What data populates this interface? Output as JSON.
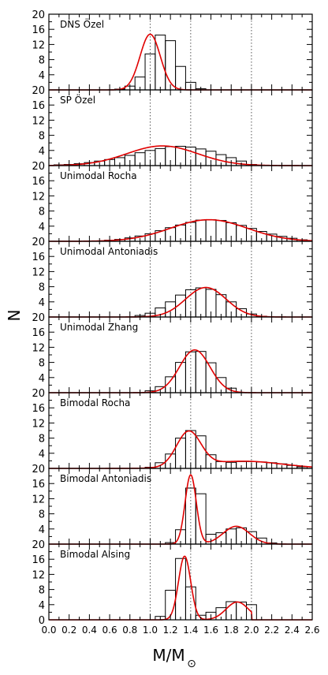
{
  "figure": {
    "ylabel": "N",
    "xlabel": "M/M",
    "xlabel_sub": "⊙"
  },
  "chart_data": [
    {
      "type": "bar",
      "title": "DNS Özel",
      "x_bin_centers": [
        0.7,
        0.8,
        0.9,
        1.0,
        1.1,
        1.2,
        1.3,
        1.4,
        1.5,
        1.6,
        1.7,
        1.8,
        1.9,
        2.0,
        2.1,
        2.2,
        2.3,
        2.4,
        2.5
      ],
      "values": [
        0.2,
        1.0,
        3.4,
        9.5,
        14.5,
        13.0,
        6.2,
        2.0,
        0.3,
        0,
        0,
        0,
        0,
        0,
        0,
        0,
        0,
        0,
        0
      ],
      "fit": {
        "shape": "gaussian",
        "peaks": [
          {
            "mu": 1.0,
            "sigma": 0.1,
            "amp": 14.7
          }
        ]
      },
      "xlim": [
        0,
        2.6
      ],
      "ylim": [
        0,
        20
      ],
      "yticks": [
        4,
        8,
        12,
        16,
        20
      ]
    },
    {
      "type": "bar",
      "title": "SP Özel",
      "x_bin_centers": [
        0.1,
        0.2,
        0.3,
        0.4,
        0.5,
        0.6,
        0.7,
        0.8,
        0.9,
        1.0,
        1.1,
        1.2,
        1.3,
        1.4,
        1.5,
        1.6,
        1.7,
        1.8,
        1.9,
        2.0
      ],
      "values": [
        0.2,
        0.3,
        0.5,
        0.8,
        1.2,
        1.6,
        2.1,
        2.7,
        3.4,
        4.0,
        4.5,
        5.0,
        5.1,
        4.9,
        4.4,
        3.8,
        2.9,
        2.1,
        1.2,
        0.3
      ],
      "fit": {
        "shape": "gaussian",
        "peaks": [
          {
            "mu": 1.12,
            "sigma": 0.35,
            "amp": 5.2
          }
        ]
      },
      "xlim": [
        0,
        2.6
      ],
      "ylim": [
        0,
        20
      ],
      "yticks": [
        4,
        8,
        12,
        16,
        20
      ]
    },
    {
      "type": "bar",
      "title": "Unimodal Rocha",
      "x_bin_centers": [
        0.6,
        0.7,
        0.8,
        0.9,
        1.0,
        1.1,
        1.2,
        1.3,
        1.4,
        1.5,
        1.6,
        1.7,
        1.8,
        1.9,
        2.0,
        2.1,
        2.2,
        2.3,
        2.4,
        2.5
      ],
      "values": [
        0.3,
        0.5,
        0.9,
        1.4,
        2.0,
        2.8,
        3.6,
        4.3,
        5.0,
        5.6,
        5.7,
        5.5,
        4.9,
        4.2,
        3.4,
        2.6,
        1.9,
        1.3,
        0.8,
        0.4
      ],
      "fit": {
        "shape": "gaussian",
        "peaks": [
          {
            "mu": 1.58,
            "sigma": 0.38,
            "amp": 5.7
          }
        ]
      },
      "xlim": [
        0,
        2.6
      ],
      "ylim": [
        0,
        20
      ],
      "yticks": [
        4,
        8,
        12,
        16,
        20
      ]
    },
    {
      "type": "bar",
      "title": "Unimodal Antoniadis",
      "x_bin_centers": [
        0.9,
        1.0,
        1.1,
        1.2,
        1.3,
        1.4,
        1.5,
        1.6,
        1.7,
        1.8,
        1.9,
        2.0,
        2.1
      ],
      "values": [
        0.4,
        1.0,
        2.4,
        4.0,
        5.8,
        7.2,
        7.7,
        7.3,
        5.9,
        4.0,
        2.2,
        0.8,
        0.2
      ],
      "fit": {
        "shape": "gaussian",
        "peaks": [
          {
            "mu": 1.55,
            "sigma": 0.2,
            "amp": 7.8
          }
        ]
      },
      "xlim": [
        0,
        2.6
      ],
      "ylim": [
        0,
        20
      ],
      "yticks": [
        4,
        8,
        12,
        16,
        20
      ]
    },
    {
      "type": "bar",
      "title": "Unimodal Zhang",
      "x_bin_centers": [
        1.0,
        1.1,
        1.2,
        1.3,
        1.4,
        1.5,
        1.6,
        1.7,
        1.8
      ],
      "values": [
        0.5,
        1.6,
        4.2,
        8.0,
        10.8,
        10.9,
        7.9,
        4.0,
        1.2
      ],
      "fit": {
        "shape": "gaussian",
        "peaks": [
          {
            "mu": 1.44,
            "sigma": 0.15,
            "amp": 11.3
          }
        ]
      },
      "xlim": [
        0,
        2.6
      ],
      "ylim": [
        0,
        20
      ],
      "yticks": [
        4,
        8,
        12,
        16,
        20
      ]
    },
    {
      "type": "bar",
      "title": "Bimodal Rocha",
      "x_bin_centers": [
        1.0,
        1.1,
        1.2,
        1.3,
        1.4,
        1.5,
        1.6,
        1.7,
        1.8,
        1.9,
        2.0,
        2.1,
        2.2,
        2.3,
        2.4,
        2.5
      ],
      "values": [
        0.3,
        1.5,
        3.8,
        8.0,
        10.0,
        8.6,
        3.6,
        1.8,
        1.6,
        1.8,
        1.8,
        1.7,
        1.5,
        1.2,
        0.8,
        0.4
      ],
      "fit": {
        "shape": "bimodal",
        "peaks": [
          {
            "mu": 1.38,
            "sigma": 0.12,
            "amp": 9.2
          },
          {
            "mu": 1.92,
            "sigma": 0.38,
            "amp": 1.9
          }
        ]
      },
      "xlim": [
        0,
        2.6
      ],
      "ylim": [
        0,
        20
      ],
      "yticks": [
        4,
        8,
        12,
        16,
        20
      ]
    },
    {
      "type": "bar",
      "title": "Bimodal Antoniadis",
      "x_bin_centers": [
        1.2,
        1.3,
        1.4,
        1.5,
        1.6,
        1.7,
        1.8,
        1.9,
        2.0,
        2.1,
        2.2
      ],
      "values": [
        0.4,
        3.8,
        14.8,
        13.3,
        2.6,
        3.0,
        4.0,
        4.3,
        3.3,
        1.6,
        0.3
      ],
      "fit": {
        "shape": "bimodal",
        "peaks": [
          {
            "mu": 1.4,
            "sigma": 0.055,
            "amp": 18.3
          },
          {
            "mu": 1.85,
            "sigma": 0.13,
            "amp": 4.7
          }
        ]
      },
      "xlim": [
        0,
        2.6
      ],
      "ylim": [
        0,
        20
      ],
      "yticks": [
        4,
        8,
        12,
        16,
        20
      ]
    },
    {
      "type": "bar",
      "title": "Bimodal Alsing",
      "x_bin_centers": [
        1.1,
        1.2,
        1.3,
        1.4,
        1.5,
        1.6,
        1.7,
        1.8,
        1.9,
        2.0
      ],
      "values": [
        0.9,
        7.8,
        16.2,
        8.7,
        1.2,
        2.0,
        3.2,
        4.8,
        4.7,
        4.0
      ],
      "fit": {
        "shape": "bimodal",
        "peaks": [
          {
            "mu": 1.34,
            "sigma": 0.06,
            "amp": 16.8
          },
          {
            "mu": 1.86,
            "sigma": 0.11,
            "amp": 4.7
          }
        ],
        "cutoff": 2.0
      },
      "xlim": [
        0,
        2.6
      ],
      "ylim": [
        0,
        20
      ],
      "yticks": [
        0,
        4,
        8,
        12,
        16,
        20
      ],
      "xticks": [
        "0.0",
        "0.2",
        "0.4",
        "0.6",
        "0.8",
        "1.0",
        "1.2",
        "1.4",
        "1.6",
        "1.8",
        "2.0",
        "2.2",
        "2.4",
        "2.6"
      ]
    }
  ],
  "reference_lines": [
    1.0,
    1.4,
    2.0
  ],
  "colors": {
    "fit": "#e00000",
    "bars": "#000000",
    "frame": "#000000",
    "reflines": "#555555"
  }
}
